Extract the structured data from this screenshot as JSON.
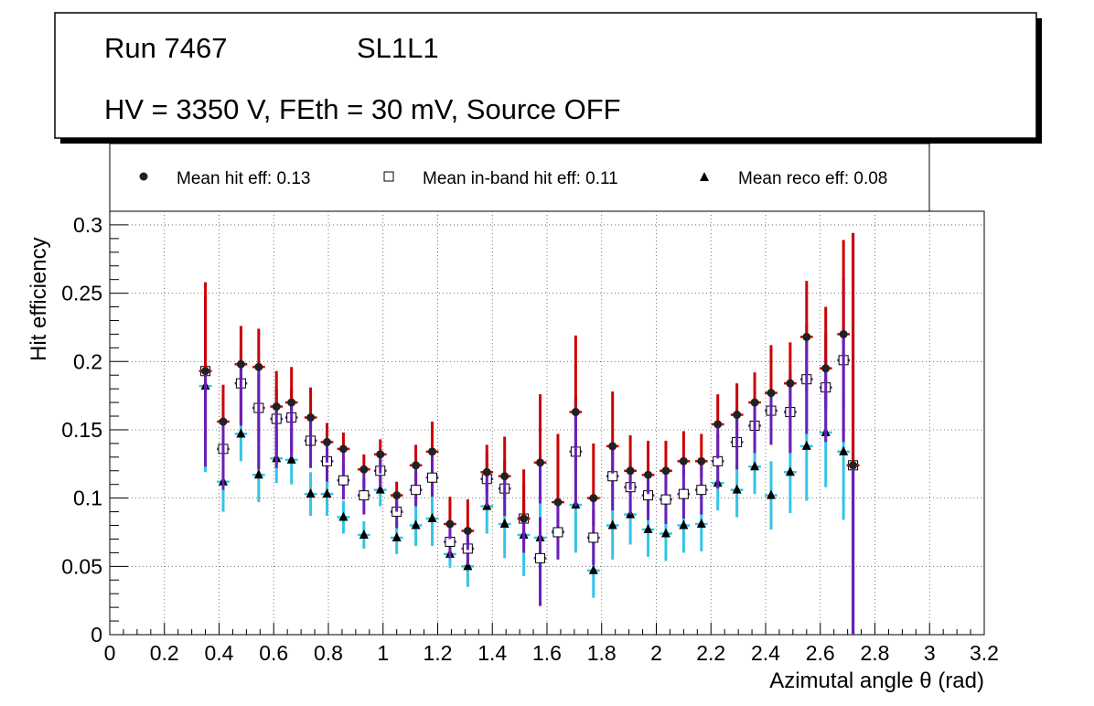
{
  "header": {
    "run": "Run 7467",
    "layer": "SL1L1",
    "conditions": "HV = 3350 V, FEth = 30 mV, Source OFF"
  },
  "legend": {
    "hit": "Mean hit  eff: 0.13",
    "inband": "Mean in-band hit eff: 0.11",
    "reco": "Mean reco eff: 0.08"
  },
  "colors": {
    "hit_marker": "#222222",
    "hit_err_up": "#cc0000",
    "hit_err_down": "#6a1fb5",
    "inband_err": "#6a1fb5",
    "reco_err": "#33c4e8",
    "axis": "#000000",
    "grid": "#555555"
  },
  "chart_data": {
    "type": "scatter",
    "title": "",
    "xlabel": "Azimutal angle θ (rad)",
    "ylabel": "Hit efficiency",
    "xlim": [
      0,
      3.2
    ],
    "ylim": [
      0,
      0.31
    ],
    "grid": true,
    "x_ticks": [
      "0",
      "0.2",
      "0.4",
      "0.6",
      "0.8",
      "1",
      "1.2",
      "1.4",
      "1.6",
      "1.8",
      "2",
      "2.2",
      "2.4",
      "2.6",
      "2.8",
      "3",
      "3.2"
    ],
    "y_ticks": [
      "0",
      "0.05",
      "0.1",
      "0.15",
      "0.2",
      "0.25",
      "0.3"
    ],
    "x_halfwidth": 0.023,
    "series": [
      {
        "name": "Mean hit  eff: 0.13",
        "marker": "circle",
        "x": [
          0.35,
          0.415,
          0.48,
          0.545,
          0.61,
          0.665,
          0.735,
          0.795,
          0.855,
          0.93,
          0.99,
          1.05,
          1.12,
          1.18,
          1.245,
          1.31,
          1.38,
          1.445,
          1.515,
          1.575,
          1.64,
          1.705,
          1.77,
          1.84,
          1.905,
          1.97,
          2.035,
          2.1,
          2.165,
          2.225,
          2.295,
          2.36,
          2.42,
          2.49,
          2.55,
          2.62,
          2.685,
          2.72
        ],
        "values": [
          0.193,
          0.156,
          0.198,
          0.196,
          0.167,
          0.17,
          0.159,
          0.141,
          0.136,
          0.121,
          0.132,
          0.102,
          0.124,
          0.134,
          0.081,
          0.076,
          0.119,
          0.116,
          0.085,
          0.126,
          0.097,
          0.163,
          0.1,
          0.138,
          0.12,
          0.117,
          0.12,
          0.127,
          0.127,
          0.154,
          0.161,
          0.17,
          0.177,
          0.184,
          0.218,
          0.195,
          0.22,
          0.124
        ],
        "err_up": [
          0.065,
          0.027,
          0.028,
          0.028,
          0.026,
          0.026,
          0.022,
          0.014,
          0.012,
          0.011,
          0.011,
          0.01,
          0.015,
          0.022,
          0.02,
          0.023,
          0.02,
          0.029,
          0.036,
          0.05,
          0.05,
          0.056,
          0.04,
          0.04,
          0.026,
          0.025,
          0.022,
          0.022,
          0.02,
          0.022,
          0.023,
          0.022,
          0.035,
          0.03,
          0.041,
          0.045,
          0.069,
          0.17
        ],
        "err_down": [
          0.07,
          0.042,
          0.045,
          0.075,
          0.045,
          0.04,
          0.02,
          0.015,
          0.015,
          0.014,
          0.014,
          0.012,
          0.012,
          0.015,
          0.011,
          0.014,
          0.014,
          0.017,
          0.018,
          0.03,
          0.015,
          0.04,
          0.02,
          0.02,
          0.014,
          0.014,
          0.013,
          0.011,
          0.012,
          0.025,
          0.025,
          0.026,
          0.02,
          0.05,
          0.04,
          0.03,
          0.055,
          0.124
        ]
      },
      {
        "name": "Mean in-band hit eff: 0.11",
        "marker": "open-square",
        "x": [
          0.35,
          0.415,
          0.48,
          0.545,
          0.61,
          0.665,
          0.735,
          0.795,
          0.855,
          0.93,
          0.99,
          1.05,
          1.12,
          1.18,
          1.245,
          1.31,
          1.38,
          1.445,
          1.515,
          1.575,
          1.64,
          1.705,
          1.77,
          1.84,
          1.905,
          1.97,
          2.035,
          2.1,
          2.165,
          2.225,
          2.295,
          2.36,
          2.42,
          2.49,
          2.55,
          2.62,
          2.685,
          2.72
        ],
        "values": [
          0.193,
          0.136,
          0.184,
          0.166,
          0.158,
          0.159,
          0.142,
          0.127,
          0.113,
          0.102,
          0.12,
          0.09,
          0.106,
          0.115,
          0.068,
          0.063,
          0.114,
          0.107,
          0.085,
          0.056,
          0.075,
          0.134,
          0.071,
          0.116,
          0.108,
          0.102,
          0.099,
          0.103,
          0.106,
          0.127,
          0.141,
          0.153,
          0.164,
          0.163,
          0.187,
          0.181,
          0.201,
          0.124
        ],
        "err_up": [
          0.055,
          0.025,
          0.025,
          0.025,
          0.022,
          0.022,
          0.018,
          0.014,
          0.012,
          0.012,
          0.01,
          0.01,
          0.012,
          0.015,
          0.01,
          0.012,
          0.02,
          0.02,
          0.025,
          0.03,
          0.025,
          0.04,
          0.02,
          0.025,
          0.02,
          0.018,
          0.018,
          0.018,
          0.018,
          0.02,
          0.02,
          0.02,
          0.03,
          0.03,
          0.04,
          0.04,
          0.06,
          0.17
        ],
        "err_down": [
          0.05,
          0.03,
          0.03,
          0.025,
          0.025,
          0.025,
          0.02,
          0.015,
          0.014,
          0.014,
          0.012,
          0.012,
          0.012,
          0.014,
          0.012,
          0.012,
          0.02,
          0.02,
          0.025,
          0.035,
          0.02,
          0.04,
          0.02,
          0.025,
          0.02,
          0.018,
          0.018,
          0.018,
          0.018,
          0.02,
          0.02,
          0.02,
          0.025,
          0.03,
          0.04,
          0.04,
          0.06,
          0.124
        ]
      },
      {
        "name": "Mean reco eff: 0.08",
        "marker": "triangle",
        "x": [
          0.35,
          0.415,
          0.48,
          0.545,
          0.61,
          0.665,
          0.735,
          0.795,
          0.855,
          0.93,
          0.99,
          1.05,
          1.12,
          1.18,
          1.245,
          1.31,
          1.38,
          1.445,
          1.515,
          1.575,
          1.64,
          1.705,
          1.77,
          1.84,
          1.905,
          1.97,
          2.035,
          2.1,
          2.165,
          2.225,
          2.295,
          2.36,
          2.42,
          2.49,
          2.55,
          2.62,
          2.685,
          2.72
        ],
        "values": [
          0.182,
          0.112,
          0.147,
          0.117,
          0.129,
          0.128,
          0.103,
          0.103,
          0.086,
          0.073,
          0.106,
          0.071,
          0.08,
          0.085,
          0.059,
          0.05,
          0.094,
          0.081,
          0.073,
          0.071,
          0.076,
          0.095,
          0.047,
          0.08,
          0.088,
          0.077,
          0.074,
          0.08,
          0.081,
          0.111,
          0.106,
          0.123,
          0.102,
          0.119,
          0.138,
          0.148,
          0.134,
          0.124
        ],
        "err_up": [
          0.065,
          0.023,
          0.02,
          0.022,
          0.02,
          0.02,
          0.016,
          0.016,
          0.012,
          0.01,
          0.012,
          0.012,
          0.018,
          0.025,
          0.01,
          0.015,
          0.02,
          0.025,
          0.025,
          0.025,
          0.02,
          0.03,
          0.02,
          0.03,
          0.022,
          0.02,
          0.02,
          0.02,
          0.02,
          0.02,
          0.02,
          0.02,
          0.025,
          0.03,
          0.05,
          0.04,
          0.04,
          0.17
        ],
        "err_down": [
          0.063,
          0.022,
          0.02,
          0.02,
          0.018,
          0.018,
          0.016,
          0.016,
          0.012,
          0.01,
          0.012,
          0.012,
          0.015,
          0.02,
          0.01,
          0.015,
          0.02,
          0.025,
          0.03,
          0.03,
          0.02,
          0.035,
          0.02,
          0.025,
          0.022,
          0.02,
          0.02,
          0.02,
          0.02,
          0.02,
          0.02,
          0.02,
          0.025,
          0.03,
          0.04,
          0.04,
          0.05,
          0.124
        ]
      }
    ]
  }
}
